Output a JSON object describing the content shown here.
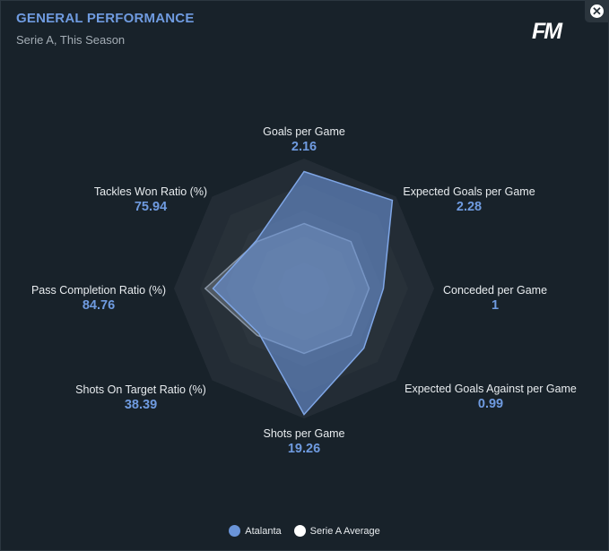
{
  "header": {
    "title": "GENERAL PERFORMANCE",
    "subtitle": "Serie A, This Season",
    "logo": "FM",
    "close_icon": "close-icon"
  },
  "colors": {
    "atalanta": "#6a94d8",
    "average": "#ffffff",
    "background": "#18222a"
  },
  "chart_data": {
    "type": "radar",
    "axes": [
      {
        "label": "Goals per Game",
        "value": "2.16"
      },
      {
        "label": "Expected Goals per Game",
        "value": "2.28"
      },
      {
        "label": "Conceded per Game",
        "value": "1"
      },
      {
        "label": "Expected Goals Against per Game",
        "value": "0.99"
      },
      {
        "label": "Shots per Game",
        "value": "19.26"
      },
      {
        "label": "Shots On Target Ratio (%)",
        "value": "38.39"
      },
      {
        "label": "Pass Completion Ratio (%)",
        "value": "84.76"
      },
      {
        "label": "Tackles Won Ratio (%)",
        "value": "75.94"
      }
    ],
    "series": [
      {
        "name": "Atalanta",
        "normalized": [
          0.9,
          0.96,
          0.61,
          0.65,
          0.97,
          0.49,
          0.7,
          0.52
        ]
      },
      {
        "name": "Serie A Average",
        "normalized": [
          0.5,
          0.51,
          0.5,
          0.51,
          0.5,
          0.51,
          0.76,
          0.51
        ]
      }
    ],
    "rings": 5,
    "legend": "bottom"
  }
}
